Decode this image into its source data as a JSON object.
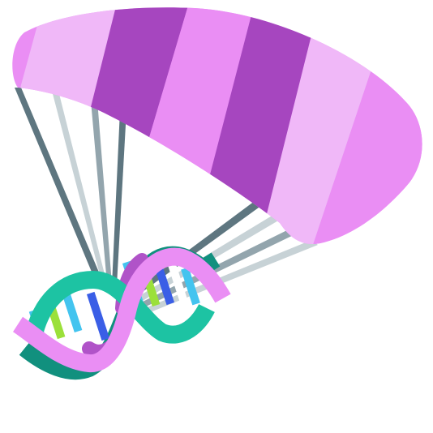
{
  "illustration": {
    "subject": "dna-helix-parachute-icon",
    "colors": {
      "canopy_light": "#f0b8f8",
      "canopy_mid": "#ea8ef4",
      "canopy_dark": "#a646bf",
      "line_dark": "#5e7680",
      "line_mid": "#93a5ad",
      "line_light": "#c7d2d6",
      "strand_pink": "#ea8ef4",
      "strand_teal": "#1dc3a3",
      "strand_teal_dark": "#11907e",
      "backbone_purple": "#b053c8",
      "rung_cyan": "#43c4ef",
      "rung_green": "#9be03a",
      "rung_blue": "#3a5ee6",
      "rung_white": "#ffffff"
    }
  }
}
